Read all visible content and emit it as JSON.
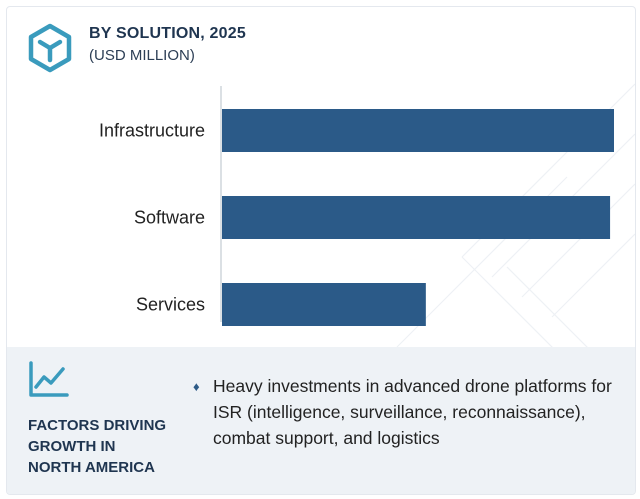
{
  "header": {
    "title": "BY SOLUTION, 2025",
    "subtitle": "(USD MILLION)",
    "icon": "cube-icon"
  },
  "chart_data": {
    "type": "bar",
    "orientation": "horizontal",
    "title": "BY SOLUTION, 2025",
    "subtitle": "(USD MILLION)",
    "categories": [
      "Infrastructure",
      "Software",
      "Services"
    ],
    "values": [
      100,
      99,
      52
    ],
    "xlim": [
      0,
      100
    ],
    "value_axis_labels": false,
    "grid": false,
    "bar_color": "#2b5a88"
  },
  "factors": {
    "icon": "trend-line-icon",
    "title_lines": [
      "FACTORS DRIVING",
      "GROWTH IN",
      "NORTH AMERICA"
    ],
    "bullet_glyph": "♦",
    "bullets": [
      "Heavy investments in advanced drone platforms for ISR (intelligence, surveillance, reconnaissance), combat support, and logistics"
    ]
  },
  "colors": {
    "accent": "#3a9bbd",
    "bar": "#2b5a88",
    "heading": "#1f3550",
    "panel_bg": "#eef2f6"
  }
}
